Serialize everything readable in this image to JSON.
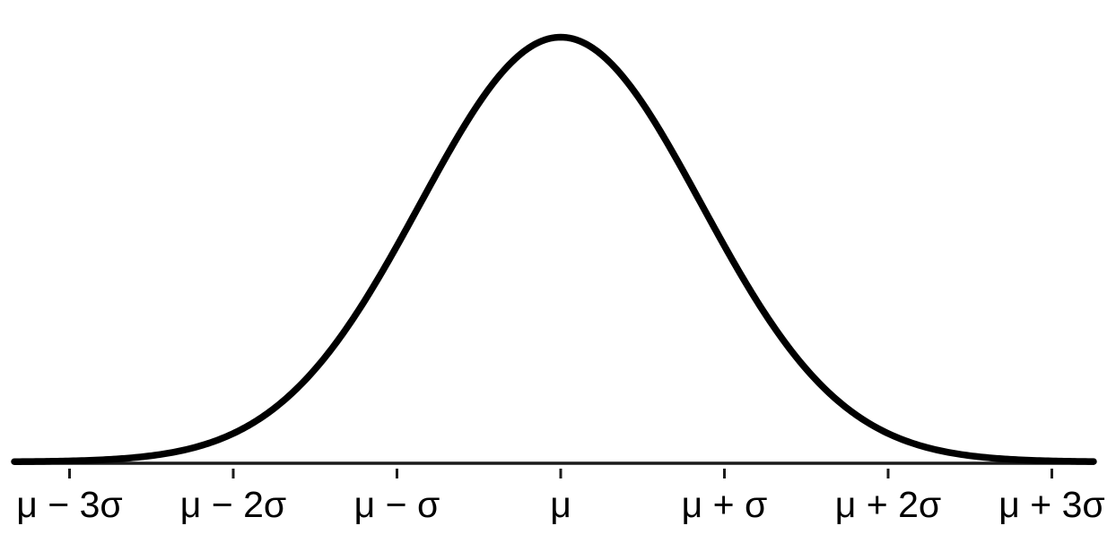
{
  "chart_data": {
    "type": "line",
    "title": "",
    "xlabel": "",
    "ylabel": "",
    "grid": false,
    "legend": false,
    "y_axis_shown": false,
    "description": "Bell curve of a normal (Gaussian) distribution over a horizontal axis with tick marks every standard deviation from mu minus 3 sigma to mu plus 3 sigma",
    "x_tick_labels": [
      "μ − 3σ",
      "μ − 2σ",
      "μ − σ",
      "μ",
      "μ + σ",
      "μ + 2σ",
      "μ + 3σ"
    ],
    "x_tick_values": [
      -3,
      -2,
      -1,
      0,
      1,
      2,
      3
    ],
    "curve": {
      "function": "normal probability density",
      "formula": "y ∝ exp(−(x−μ)²/(2σ²))",
      "mean": 0,
      "peak_normalized": 1,
      "visual_sigma_tick_units": 0.86,
      "x_range_tick_units": [
        -3.34,
        3.26
      ],
      "samples_tick_units": [
        [
          -3.0,
          0.0023
        ],
        [
          -2.5,
          0.0146
        ],
        [
          -2.0,
          0.0669
        ],
        [
          -1.5,
          0.2185
        ],
        [
          -1.0,
          0.5086
        ],
        [
          -0.5,
          0.8445
        ],
        [
          0.0,
          1.0
        ],
        [
          0.5,
          0.8445
        ],
        [
          1.0,
          0.5086
        ],
        [
          1.5,
          0.2185
        ],
        [
          2.0,
          0.0669
        ],
        [
          2.5,
          0.0146
        ],
        [
          3.0,
          0.0023
        ]
      ]
    },
    "colors": {
      "curve": "#000000",
      "axis": "#1b1b1b",
      "tick": "#1b1b1b",
      "label": "#000000",
      "background": "#ffffff"
    }
  }
}
